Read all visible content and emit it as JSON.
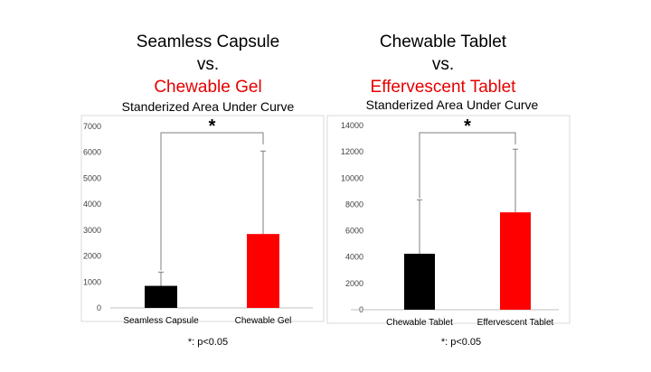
{
  "chart_data": [
    {
      "type": "bar",
      "heading_line1": "Seamless Capsule",
      "heading_line2": "vs.",
      "heading_line3": "Chewable Gel",
      "title": "Standerized Area Under Curve",
      "categories": [
        "Seamless Capsule",
        "Chewable Gel"
      ],
      "values": [
        850,
        2850
      ],
      "error_upper": [
        1380,
        6050
      ],
      "bar_colors": [
        "#000000",
        "#ff0000"
      ],
      "ylim": [
        0,
        7000
      ],
      "yticks": [
        0,
        1000,
        2000,
        3000,
        4000,
        5000,
        6000,
        7000
      ],
      "significance": "*",
      "footnote": "*: p<0.05"
    },
    {
      "type": "bar",
      "heading_line1": "Chewable Tablet",
      "heading_line2": "vs.",
      "heading_line3": "Effervescent Tablet",
      "title": "Standerized Area Under Curve",
      "categories": [
        "Chewable Tablet",
        "Effervescent Tablet"
      ],
      "values": [
        4250,
        7400
      ],
      "error_upper": [
        8350,
        12200
      ],
      "bar_colors": [
        "#000000",
        "#ff0000"
      ],
      "ylim": [
        0,
        14000
      ],
      "yticks": [
        0,
        2000,
        4000,
        6000,
        8000,
        10000,
        12000,
        14000
      ],
      "significance": "*",
      "footnote": "*: p<0.05"
    }
  ]
}
